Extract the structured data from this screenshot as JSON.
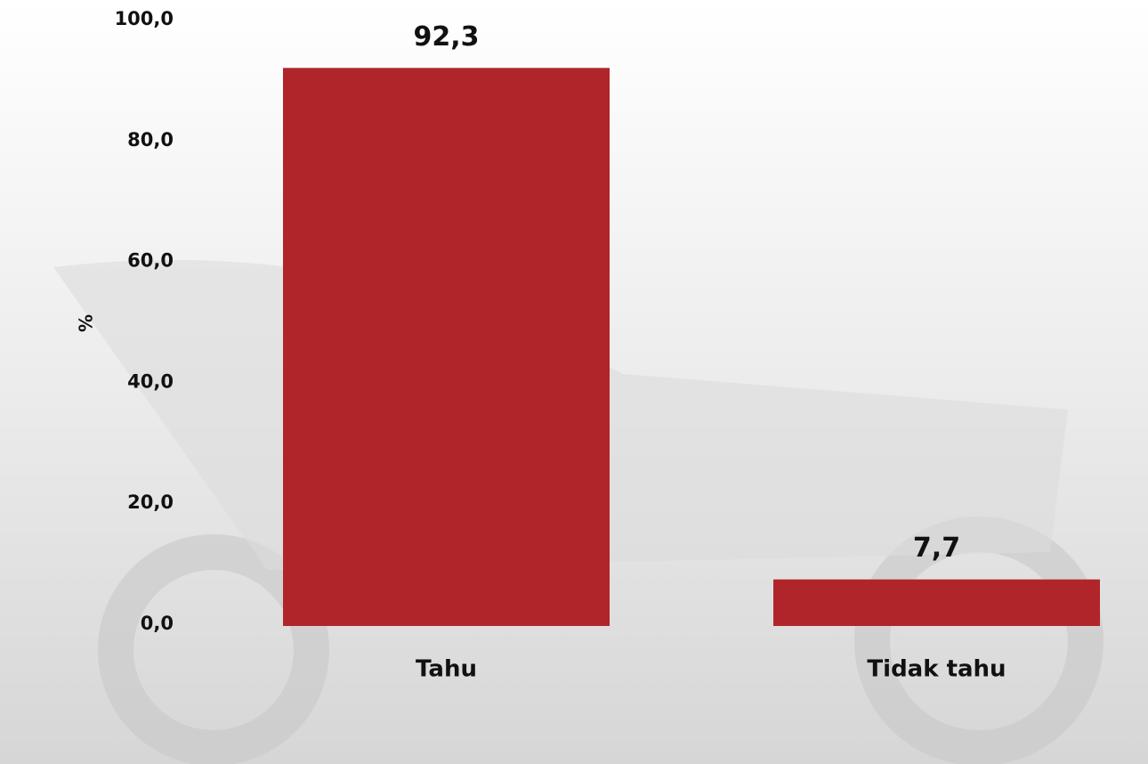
{
  "chart_data": {
    "type": "bar",
    "y_label": "%",
    "categories": [
      "Tahu",
      "Tidak tahu"
    ],
    "values": [
      92.3,
      7.7
    ],
    "value_labels": [
      "92,3",
      "7,7"
    ],
    "color": "#b0252a",
    "ylim": [
      0,
      100
    ],
    "yticks": [
      {
        "value": 0,
        "label": "0,0"
      },
      {
        "value": 20,
        "label": "20,0"
      },
      {
        "value": 40,
        "label": "40,0"
      },
      {
        "value": 60,
        "label": "60,0"
      },
      {
        "value": 80,
        "label": "80,0"
      },
      {
        "value": 100,
        "label": "100,0"
      }
    ]
  }
}
